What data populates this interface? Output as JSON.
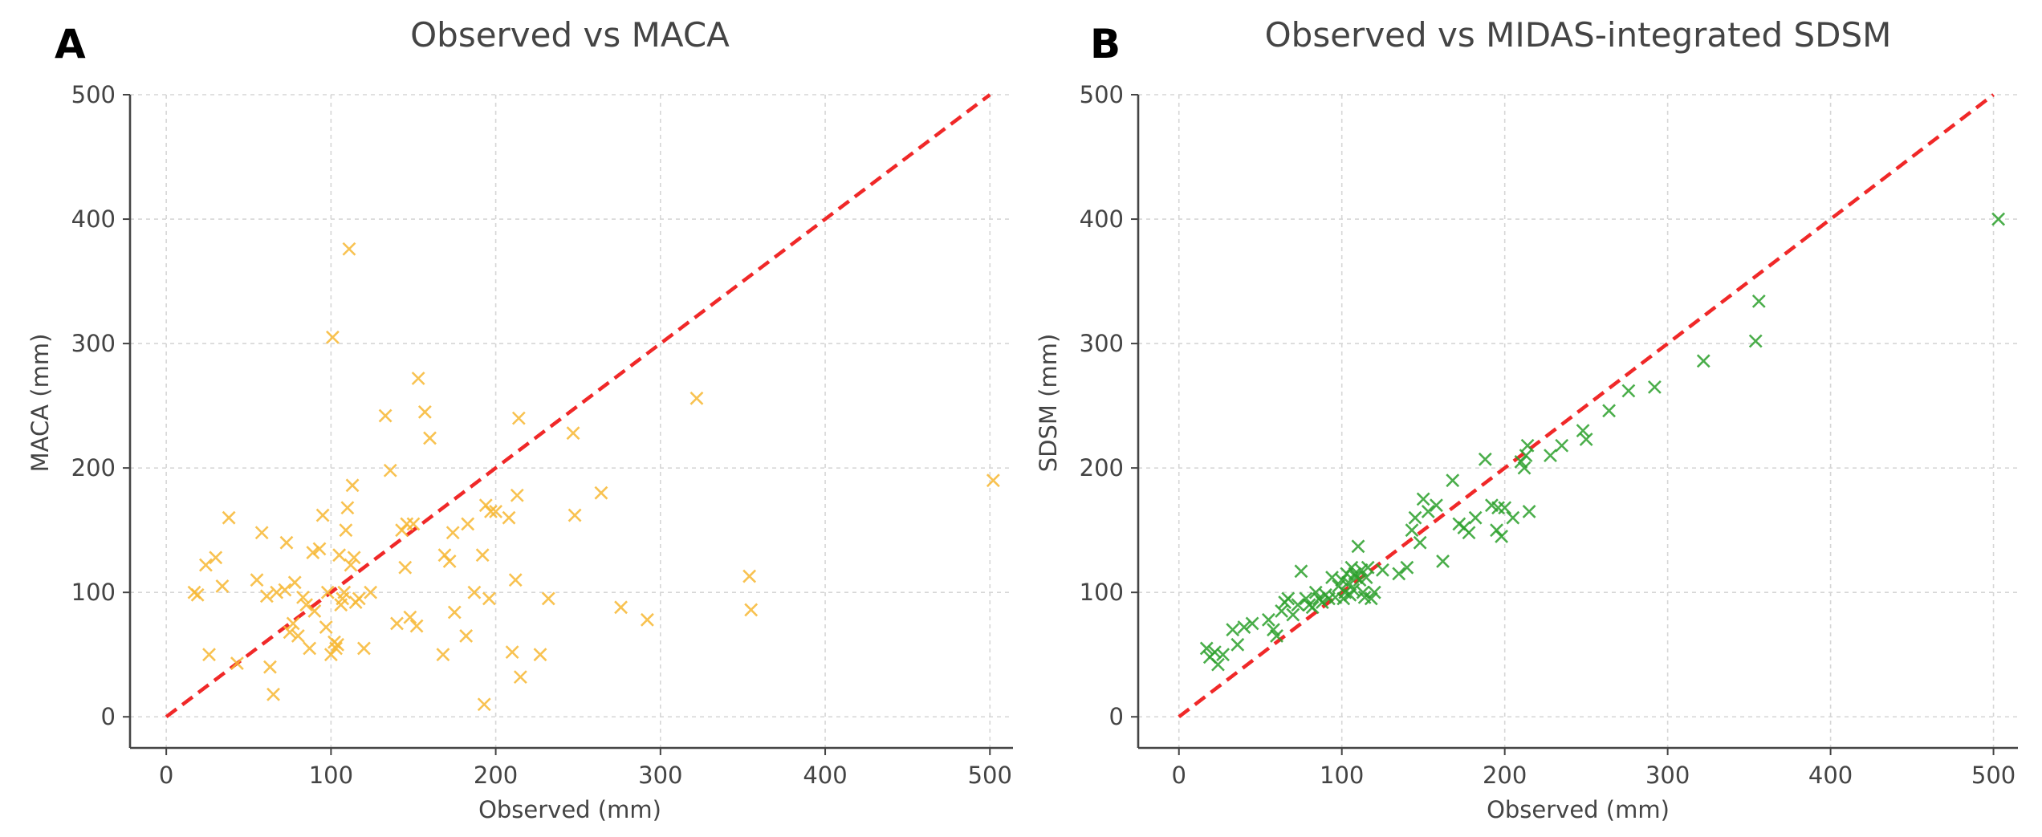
{
  "chart_data": [
    {
      "type": "scatter",
      "panel_label": "A",
      "title": "Observed vs MACA",
      "xlabel": "Observed (mm)",
      "ylabel": "MACA (mm)",
      "xlim": [
        -22,
        514
      ],
      "ylim": [
        -25,
        500
      ],
      "xticks": [
        0,
        100,
        200,
        300,
        400,
        500
      ],
      "yticks": [
        0,
        100,
        200,
        300,
        400,
        500
      ],
      "grid": true,
      "marker": "x",
      "marker_color": "#f7b733",
      "reference_line": {
        "from": [
          0,
          0
        ],
        "to": [
          500,
          500
        ],
        "color": "#f02828",
        "style": "dashed"
      },
      "series": [
        {
          "name": "MACA",
          "x": [
            17,
            19,
            24,
            26,
            30,
            34,
            38,
            43,
            55,
            58,
            61,
            63,
            65,
            67,
            72,
            73,
            75,
            77,
            78,
            80,
            83,
            85,
            87,
            89,
            90,
            93,
            95,
            97,
            98,
            100,
            101,
            102,
            103,
            104,
            105,
            106,
            107,
            108,
            109,
            110,
            111,
            112,
            113,
            114,
            115,
            117,
            120,
            124,
            133,
            136,
            140,
            143,
            145,
            146,
            148,
            150,
            152,
            153,
            157,
            160,
            168,
            169,
            172,
            174,
            175,
            182,
            183,
            187,
            192,
            193,
            194,
            196,
            197,
            200,
            208,
            210,
            212,
            213,
            214,
            215,
            227,
            232,
            247,
            248,
            264,
            276,
            292,
            322,
            354,
            355,
            502
          ],
          "y": [
            100,
            98,
            122,
            50,
            128,
            105,
            160,
            43,
            110,
            148,
            97,
            40,
            18,
            100,
            102,
            140,
            68,
            75,
            108,
            65,
            96,
            90,
            55,
            132,
            85,
            135,
            162,
            72,
            100,
            50,
            305,
            60,
            55,
            58,
            130,
            90,
            95,
            100,
            150,
            168,
            376,
            122,
            186,
            128,
            92,
            95,
            55,
            100,
            242,
            198,
            75,
            150,
            120,
            155,
            80,
            155,
            73,
            272,
            245,
            224,
            50,
            130,
            125,
            148,
            84,
            65,
            155,
            100,
            130,
            10,
            170,
            95,
            165,
            165,
            160,
            52,
            110,
            178,
            240,
            32,
            50,
            95,
            228,
            162,
            180,
            88,
            78,
            256,
            113,
            86,
            190
          ]
        }
      ]
    },
    {
      "type": "scatter",
      "panel_label": "B",
      "title": "Observed vs MIDAS-integrated SDSM",
      "xlabel": "Observed (mm)",
      "ylabel": "SDSM (mm)",
      "xlim": [
        -25,
        515
      ],
      "ylim": [
        -25,
        500
      ],
      "xticks": [
        0,
        100,
        200,
        300,
        400,
        500
      ],
      "yticks": [
        0,
        100,
        200,
        300,
        400,
        500
      ],
      "grid": true,
      "marker": "x",
      "marker_color": "#2ca02c",
      "reference_line": {
        "from": [
          0,
          0
        ],
        "to": [
          500,
          500
        ],
        "color": "#f02828",
        "style": "dashed"
      },
      "series": [
        {
          "name": "SDSM",
          "x": [
            17,
            19,
            22,
            24,
            27,
            33,
            36,
            40,
            45,
            55,
            58,
            60,
            63,
            65,
            67,
            70,
            73,
            75,
            78,
            80,
            82,
            84,
            86,
            88,
            90,
            92,
            94,
            96,
            98,
            100,
            101,
            102,
            103,
            104,
            105,
            106,
            107,
            108,
            109,
            110,
            111,
            112,
            113,
            114,
            115,
            116,
            118,
            120,
            125,
            135,
            140,
            143,
            145,
            148,
            150,
            153,
            158,
            162,
            168,
            172,
            175,
            178,
            182,
            188,
            192,
            195,
            196,
            198,
            200,
            205,
            210,
            212,
            213,
            214,
            215,
            228,
            235,
            248,
            250,
            264,
            276,
            292,
            322,
            354,
            356,
            503
          ],
          "y": [
            55,
            48,
            52,
            42,
            50,
            70,
            58,
            72,
            75,
            78,
            70,
            65,
            85,
            92,
            95,
            82,
            90,
            117,
            95,
            90,
            88,
            100,
            95,
            92,
            98,
            95,
            112,
            96,
            105,
            110,
            95,
            100,
            115,
            108,
            98,
            120,
            102,
            115,
            112,
            137,
            110,
            118,
            100,
            96,
            112,
            120,
            95,
            100,
            118,
            115,
            120,
            150,
            160,
            140,
            175,
            165,
            170,
            125,
            190,
            155,
            152,
            148,
            160,
            207,
            170,
            150,
            168,
            145,
            168,
            160,
            205,
            200,
            210,
            218,
            165,
            210,
            218,
            230,
            223,
            246,
            262,
            265,
            286,
            302,
            334,
            400
          ]
        }
      ]
    }
  ]
}
